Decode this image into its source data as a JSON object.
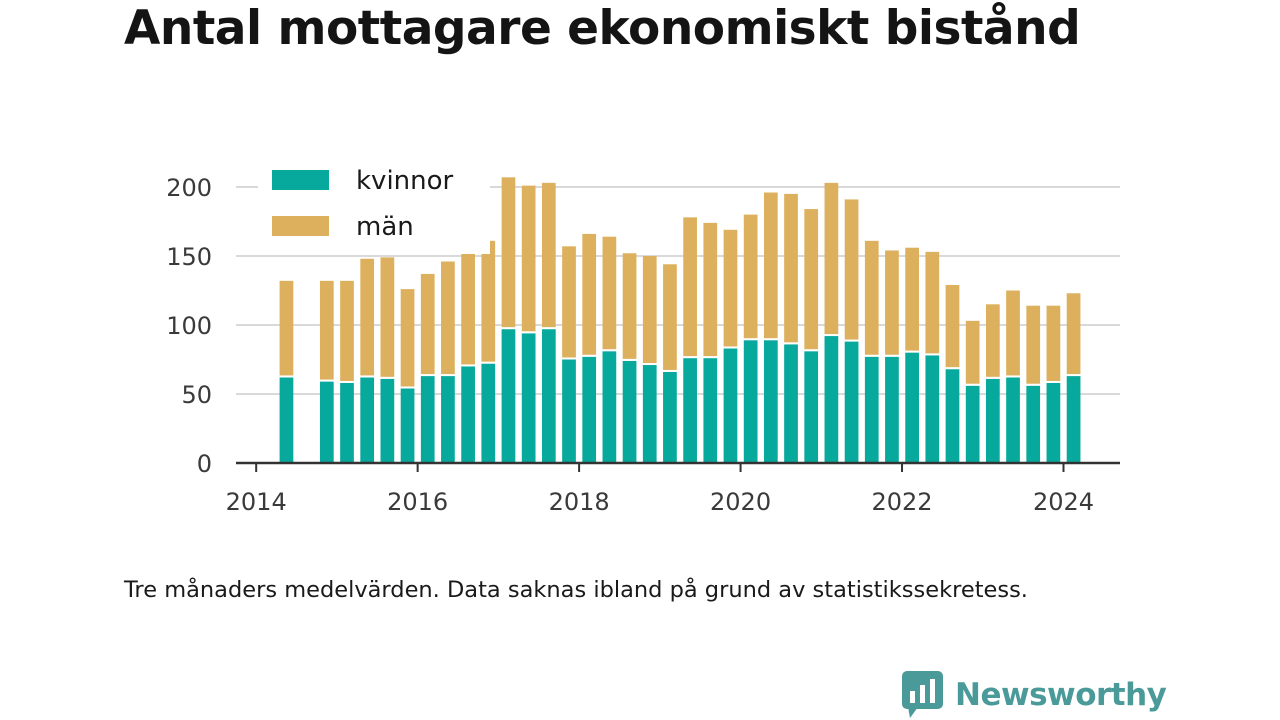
{
  "title": "Antal mottagare ekonomiskt bistånd",
  "footnote": "Tre månaders medelvärden. Data saknas ibland på grund av statistikssekretess.",
  "brand": {
    "name": "Newsworthy"
  },
  "colors": {
    "kvinnor": "#07a99c",
    "man": "#ddb05d",
    "grid": "#d9d9d9",
    "axis": "#333333",
    "brand": "#4a9a9a"
  },
  "chart_data": {
    "type": "bar",
    "stacked": true,
    "title": "Antal mottagare ekonomiskt bistånd",
    "xlabel": "",
    "ylabel": "",
    "ylim": [
      0,
      200
    ],
    "yticks": [
      0,
      50,
      100,
      150,
      200
    ],
    "xlim": [
      2013.75,
      2024.7
    ],
    "xticks": [
      2014,
      2016,
      2018,
      2020,
      2022,
      2024
    ],
    "grid": true,
    "legend": "top-left",
    "x": [
      2014.375,
      2014.875,
      2015.125,
      2015.375,
      2015.625,
      2015.875,
      2016.125,
      2016.375,
      2016.625,
      2016.875,
      2017.125,
      2017.375,
      2017.625,
      2017.875,
      2018.125,
      2018.375,
      2018.625,
      2018.875,
      2019.125,
      2019.375,
      2019.625,
      2019.875,
      2020.125,
      2020.375,
      2020.625,
      2020.875,
      2021.125,
      2021.375,
      2021.625,
      2021.875,
      2022.125,
      2022.375,
      2022.625,
      2022.875,
      2023.125,
      2023.375,
      2023.625,
      2023.875,
      2024.125
    ],
    "series": [
      {
        "name": "kvinnor",
        "values": [
          62,
          59,
          58,
          62,
          61,
          54,
          63,
          63,
          70,
          72,
          97,
          94,
          97,
          75,
          77,
          81,
          74,
          71,
          66,
          76,
          76,
          83,
          89,
          89,
          86,
          81,
          92,
          88,
          77,
          77,
          80,
          78,
          68,
          56,
          61,
          62,
          56,
          58,
          63
        ]
      },
      {
        "name": "män",
        "values": [
          70,
          73,
          74,
          86,
          88,
          72,
          74,
          83,
          88,
          89,
          110,
          107,
          106,
          82,
          89,
          83,
          78,
          79,
          78,
          102,
          98,
          86,
          91,
          107,
          109,
          103,
          111,
          103,
          84,
          77,
          76,
          75,
          61,
          47,
          54,
          63,
          58,
          56,
          60
        ]
      }
    ]
  }
}
